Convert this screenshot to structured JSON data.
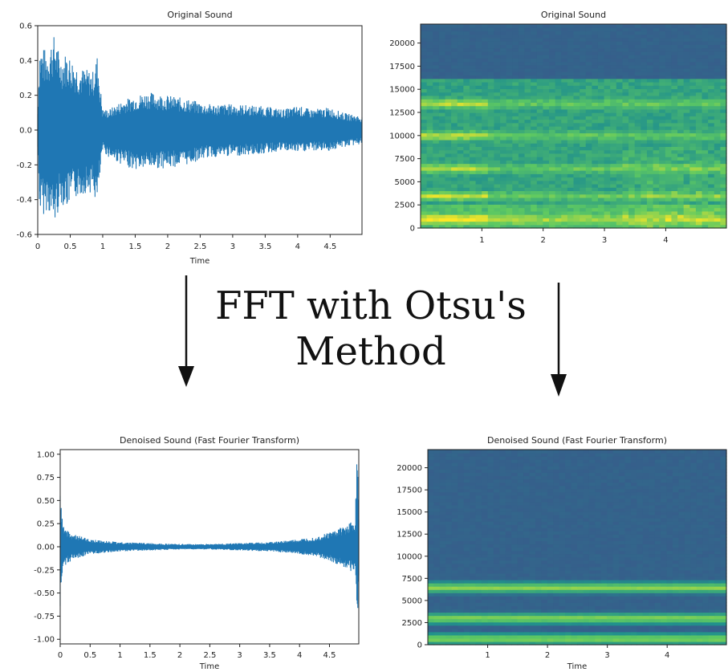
{
  "center_text": {
    "line1": "FFT with Otsu's",
    "line2": "Method"
  },
  "chart_data": [
    {
      "type": "line",
      "title": "Original Sound",
      "xlabel": "Time",
      "ylabel": "",
      "xlim": [
        0,
        4.99
      ],
      "ylim": [
        -0.6,
        0.6
      ],
      "x_ticks": [
        "0",
        "0.5",
        "1",
        "1.5",
        "2",
        "2.5",
        "3",
        "3.5",
        "4",
        "4.5"
      ],
      "x_tick_values": [
        0,
        0.5,
        1,
        1.5,
        2,
        2.5,
        3,
        3.5,
        4,
        4.5
      ],
      "y_ticks": [
        "0.6",
        "0.4",
        "0.2",
        "0.0",
        "-0.2",
        "-0.4",
        "-0.6"
      ],
      "y_tick_values": [
        0.6,
        0.4,
        0.2,
        0.0,
        -0.2,
        -0.4,
        -0.6
      ],
      "color": "#1f77b4",
      "envelope": {
        "x": [
          0,
          0.03,
          0.1,
          0.15,
          0.22,
          0.26,
          0.35,
          0.45,
          0.55,
          0.65,
          0.75,
          0.85,
          0.92,
          0.95,
          1.0,
          1.1,
          1.3,
          1.5,
          1.7,
          2.0,
          2.3,
          2.6,
          3.0,
          3.4,
          3.8,
          4.0,
          4.2,
          4.5,
          4.7,
          4.99
        ],
        "max": [
          0.12,
          0.49,
          0.47,
          0.46,
          0.53,
          0.55,
          0.42,
          0.45,
          0.4,
          0.36,
          0.35,
          0.34,
          0.44,
          0.3,
          0.12,
          0.12,
          0.17,
          0.2,
          0.22,
          0.2,
          0.18,
          0.15,
          0.15,
          0.14,
          0.12,
          0.14,
          0.12,
          0.13,
          0.1,
          0.08
        ],
        "min": [
          -0.12,
          -0.48,
          -0.49,
          -0.45,
          -0.53,
          -0.55,
          -0.42,
          -0.45,
          -0.4,
          -0.38,
          -0.36,
          -0.36,
          -0.45,
          -0.3,
          -0.12,
          -0.16,
          -0.2,
          -0.23,
          -0.22,
          -0.22,
          -0.2,
          -0.16,
          -0.15,
          -0.14,
          -0.12,
          -0.13,
          -0.12,
          -0.12,
          -0.1,
          -0.08
        ]
      }
    },
    {
      "type": "heatmap",
      "title": "Original Sound",
      "xlabel": "",
      "ylabel": "",
      "xlim": [
        0,
        4.99
      ],
      "ylim": [
        0,
        22050
      ],
      "x_ticks": [
        "1",
        "2",
        "3",
        "4"
      ],
      "x_tick_values": [
        1,
        2,
        3,
        4
      ],
      "y_ticks": [
        "20000",
        "17500",
        "15000",
        "12500",
        "10000",
        "7500",
        "5000",
        "2500",
        "0"
      ],
      "y_tick_values": [
        20000,
        17500,
        15000,
        12500,
        10000,
        7500,
        5000,
        2500,
        0
      ],
      "colormap": "viridis",
      "bands_hz": [
        1000,
        3500,
        6500,
        10000,
        13500
      ],
      "cutoff_hz": 16000
    },
    {
      "type": "line",
      "title": "Denoised Sound (Fast Fourier Transform)",
      "xlabel": "Time",
      "ylabel": "",
      "xlim": [
        0,
        4.99
      ],
      "ylim": [
        -1.05,
        1.05
      ],
      "x_ticks": [
        "0",
        "0.5",
        "1",
        "1.5",
        "2",
        "2.5",
        "3",
        "3.5",
        "4",
        "4.5"
      ],
      "x_tick_values": [
        0,
        0.5,
        1,
        1.5,
        2,
        2.5,
        3,
        3.5,
        4,
        4.5
      ],
      "y_ticks": [
        "1.00",
        "0.75",
        "0.50",
        "0.25",
        "0.00",
        "-0.25",
        "-0.50",
        "-0.75",
        "-1.00"
      ],
      "y_tick_values": [
        1.0,
        0.75,
        0.5,
        0.25,
        0.0,
        -0.25,
        -0.5,
        -0.75,
        -1.0
      ],
      "color": "#1f77b4",
      "envelope": {
        "x": [
          0,
          0.02,
          0.05,
          0.1,
          0.2,
          0.5,
          1.0,
          1.5,
          2.0,
          2.5,
          3.0,
          3.5,
          4.0,
          4.3,
          4.6,
          4.8,
          4.93,
          4.96,
          4.99
        ],
        "max": [
          0.65,
          0.4,
          0.25,
          0.2,
          0.14,
          0.08,
          0.05,
          0.04,
          0.03,
          0.03,
          0.04,
          0.05,
          0.08,
          0.11,
          0.18,
          0.24,
          0.3,
          1.0,
          0.5
        ],
        "min": [
          -0.78,
          -0.4,
          -0.25,
          -0.2,
          -0.14,
          -0.08,
          -0.05,
          -0.04,
          -0.03,
          -0.03,
          -0.04,
          -0.05,
          -0.08,
          -0.11,
          -0.18,
          -0.24,
          -0.3,
          -1.0,
          -0.5
        ]
      }
    },
    {
      "type": "heatmap",
      "title": "Denoised Sound (Fast Fourier Transform)",
      "xlabel": "Time",
      "ylabel": "",
      "xlim": [
        0,
        4.99
      ],
      "ylim": [
        0,
        22050
      ],
      "x_ticks": [
        "1",
        "2",
        "3",
        "4"
      ],
      "x_tick_values": [
        1,
        2,
        3,
        4
      ],
      "y_ticks": [
        "20000",
        "17500",
        "15000",
        "12500",
        "10000",
        "7500",
        "5000",
        "2500",
        "0"
      ],
      "y_tick_values": [
        20000,
        17500,
        15000,
        12500,
        10000,
        7500,
        5000,
        2500,
        0
      ],
      "colormap": "viridis",
      "bands_hz": [
        700,
        3000,
        6500
      ],
      "cutoff_hz": 0
    }
  ]
}
